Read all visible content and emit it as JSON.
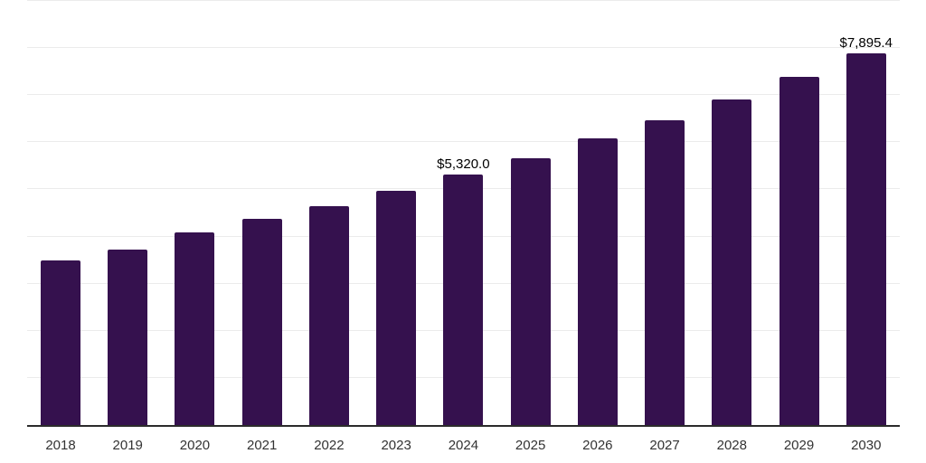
{
  "chart_data": {
    "type": "bar",
    "title": "",
    "xlabel": "",
    "ylabel": "",
    "categories": [
      "2018",
      "2019",
      "2020",
      "2021",
      "2022",
      "2023",
      "2024",
      "2025",
      "2026",
      "2027",
      "2028",
      "2029",
      "2030"
    ],
    "values": [
      3490,
      3715,
      4085,
      4370,
      4650,
      4980,
      5320.0,
      5670,
      6075,
      6470,
      6910,
      7390,
      7895.4
    ],
    "data_labels": [
      null,
      null,
      null,
      null,
      null,
      null,
      "$5,320.0",
      null,
      null,
      null,
      null,
      null,
      "$7,895.4"
    ],
    "ylim": [
      0,
      9000
    ],
    "gridline_step": 1000,
    "grid": true,
    "legend": false,
    "y_tick_labels_visible": false,
    "colors": {
      "bar": "#35114e",
      "gridline": "#ebebeb",
      "axis_line": "#2b2b2b",
      "tick_label": "#333333",
      "data_label": "#000000",
      "background": "#ffffff"
    }
  }
}
